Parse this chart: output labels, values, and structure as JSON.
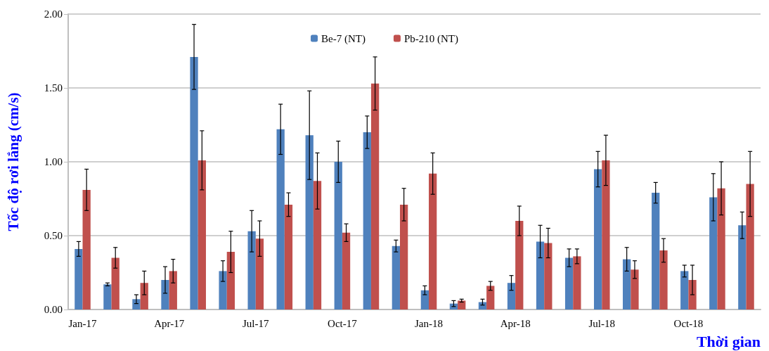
{
  "chart_data": {
    "type": "bar",
    "xlabel": "Thời gian",
    "ylabel": "Tốc độ rơi lắng (cm/s)",
    "categories": [
      "Jan-17",
      null,
      null,
      "Apr-17",
      null,
      null,
      "Jul-17",
      null,
      null,
      "Oct-17",
      null,
      null,
      "Jan-18",
      null,
      null,
      "Apr-18",
      null,
      null,
      "Jul-18",
      null,
      null,
      "Oct-18",
      null,
      null
    ],
    "series": [
      {
        "name": "Be-7 (NT)",
        "color": "#4f81bd",
        "values": [
          0.41,
          0.17,
          0.07,
          0.2,
          1.71,
          0.26,
          0.53,
          1.22,
          1.18,
          1.0,
          1.2,
          0.43,
          0.13,
          0.04,
          0.05,
          0.18,
          0.46,
          0.35,
          0.95,
          0.34,
          0.79,
          0.26,
          0.76,
          0.57
        ],
        "errors": [
          0.05,
          0.01,
          0.03,
          0.09,
          0.22,
          0.07,
          0.14,
          0.17,
          0.3,
          0.14,
          0.11,
          0.04,
          0.03,
          0.02,
          0.02,
          0.05,
          0.11,
          0.06,
          0.12,
          0.08,
          0.07,
          0.04,
          0.16,
          0.09
        ]
      },
      {
        "name": "Pb-210 (NT)",
        "color": "#c0504d",
        "values": [
          0.81,
          0.35,
          0.18,
          0.26,
          1.01,
          0.39,
          0.48,
          0.71,
          0.87,
          0.52,
          1.53,
          0.71,
          0.92,
          0.06,
          0.16,
          0.6,
          0.45,
          0.36,
          1.01,
          0.27,
          0.4,
          0.2,
          0.82,
          0.85
        ],
        "errors": [
          0.14,
          0.07,
          0.08,
          0.08,
          0.2,
          0.14,
          0.12,
          0.08,
          0.19,
          0.06,
          0.18,
          0.11,
          0.14,
          0.01,
          0.03,
          0.1,
          0.1,
          0.05,
          0.17,
          0.06,
          0.08,
          0.1,
          0.18,
          0.22
        ]
      }
    ],
    "ylim": [
      0,
      2
    ],
    "yticks": [
      {
        "value": 0,
        "label": "0.00"
      },
      {
        "value": 0.5,
        "label": "0.50"
      },
      {
        "value": 1,
        "label": "1.00"
      },
      {
        "value": 1.5,
        "label": "1.50"
      },
      {
        "value": 2,
        "label": "2.00"
      }
    ],
    "grid": "y",
    "legend": "top"
  }
}
